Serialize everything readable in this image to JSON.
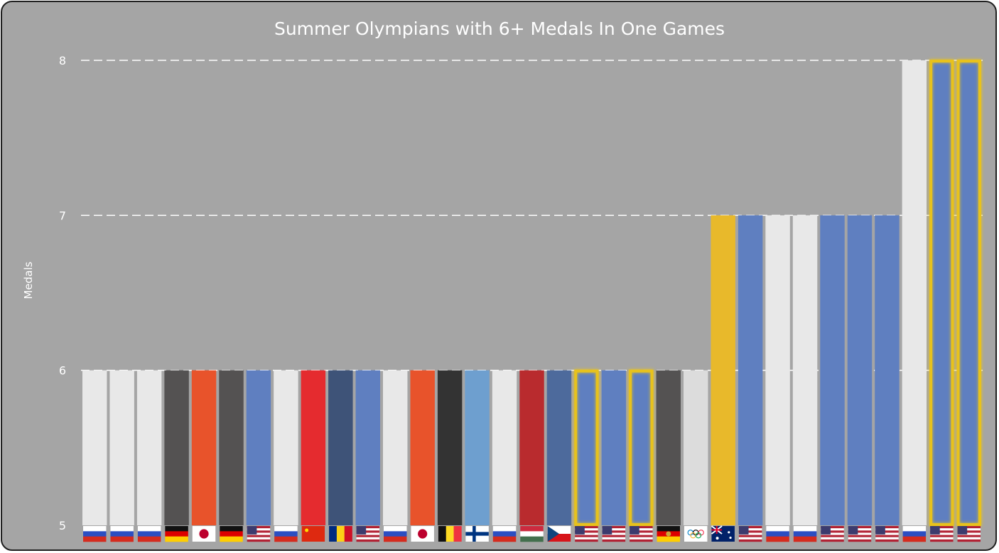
{
  "chart_data": {
    "type": "bar",
    "title": "Summer Olympians with 6+ Medals In One Games",
    "xlabel": "",
    "ylabel": "Medals",
    "ylim": [
      5,
      8
    ],
    "yticks": [
      "5",
      "6",
      "7",
      "8"
    ],
    "grid": true,
    "highlight_color": "#e8c21f",
    "bars": [
      {
        "value": 6,
        "color": "#e8e8e8",
        "flag": "RUS",
        "highlight": false
      },
      {
        "value": 6,
        "color": "#e8e8e8",
        "flag": "RUS",
        "highlight": false
      },
      {
        "value": 6,
        "color": "#e8e8e8",
        "flag": "RUS",
        "highlight": false
      },
      {
        "value": 6,
        "color": "#545252",
        "flag": "GER",
        "highlight": false
      },
      {
        "value": 6,
        "color": "#e8532b",
        "flag": "JPN",
        "highlight": false
      },
      {
        "value": 6,
        "color": "#545252",
        "flag": "GER",
        "highlight": false
      },
      {
        "value": 6,
        "color": "#5f7fc0",
        "flag": "USA",
        "highlight": false
      },
      {
        "value": 6,
        "color": "#e8e8e8",
        "flag": "RUS",
        "highlight": false
      },
      {
        "value": 6,
        "color": "#e52b2f",
        "flag": "CHN",
        "highlight": false
      },
      {
        "value": 6,
        "color": "#3e5378",
        "flag": "ROU",
        "highlight": false
      },
      {
        "value": 6,
        "color": "#5f7fc0",
        "flag": "USA",
        "highlight": false
      },
      {
        "value": 6,
        "color": "#e8e8e8",
        "flag": "RUS",
        "highlight": false
      },
      {
        "value": 6,
        "color": "#e8532b",
        "flag": "JPN",
        "highlight": false
      },
      {
        "value": 6,
        "color": "#333333",
        "flag": "BEL",
        "highlight": false
      },
      {
        "value": 6,
        "color": "#6e9fcf",
        "flag": "FIN",
        "highlight": false
      },
      {
        "value": 6,
        "color": "#e8e8e8",
        "flag": "RUS",
        "highlight": false
      },
      {
        "value": 6,
        "color": "#b92b2e",
        "flag": "HUN",
        "highlight": false
      },
      {
        "value": 6,
        "color": "#4d6a9c",
        "flag": "CZE",
        "highlight": false
      },
      {
        "value": 6,
        "color": "#5f7fc0",
        "flag": "USA",
        "highlight": true
      },
      {
        "value": 6,
        "color": "#5f7fc0",
        "flag": "USA",
        "highlight": false
      },
      {
        "value": 6,
        "color": "#5f7fc0",
        "flag": "USA",
        "highlight": true
      },
      {
        "value": 6,
        "color": "#545252",
        "flag": "GDR",
        "highlight": false
      },
      {
        "value": 6,
        "color": "#dcdcdc",
        "flag": "OLY",
        "highlight": false
      },
      {
        "value": 7,
        "color": "#e8b92b",
        "flag": "AUS",
        "highlight": false
      },
      {
        "value": 7,
        "color": "#5f7fc0",
        "flag": "USA",
        "highlight": false
      },
      {
        "value": 7,
        "color": "#e8e8e8",
        "flag": "RUS",
        "highlight": false
      },
      {
        "value": 7,
        "color": "#e8e8e8",
        "flag": "RUS",
        "highlight": false
      },
      {
        "value": 7,
        "color": "#5f7fc0",
        "flag": "USA",
        "highlight": false
      },
      {
        "value": 7,
        "color": "#5f7fc0",
        "flag": "USA",
        "highlight": false
      },
      {
        "value": 7,
        "color": "#5f7fc0",
        "flag": "USA",
        "highlight": false
      },
      {
        "value": 8,
        "color": "#e8e8e8",
        "flag": "RUS",
        "highlight": false
      },
      {
        "value": 8,
        "color": "#5f7fc0",
        "flag": "USA",
        "highlight": true
      },
      {
        "value": 8,
        "color": "#5f7fc0",
        "flag": "USA",
        "highlight": true
      }
    ]
  }
}
